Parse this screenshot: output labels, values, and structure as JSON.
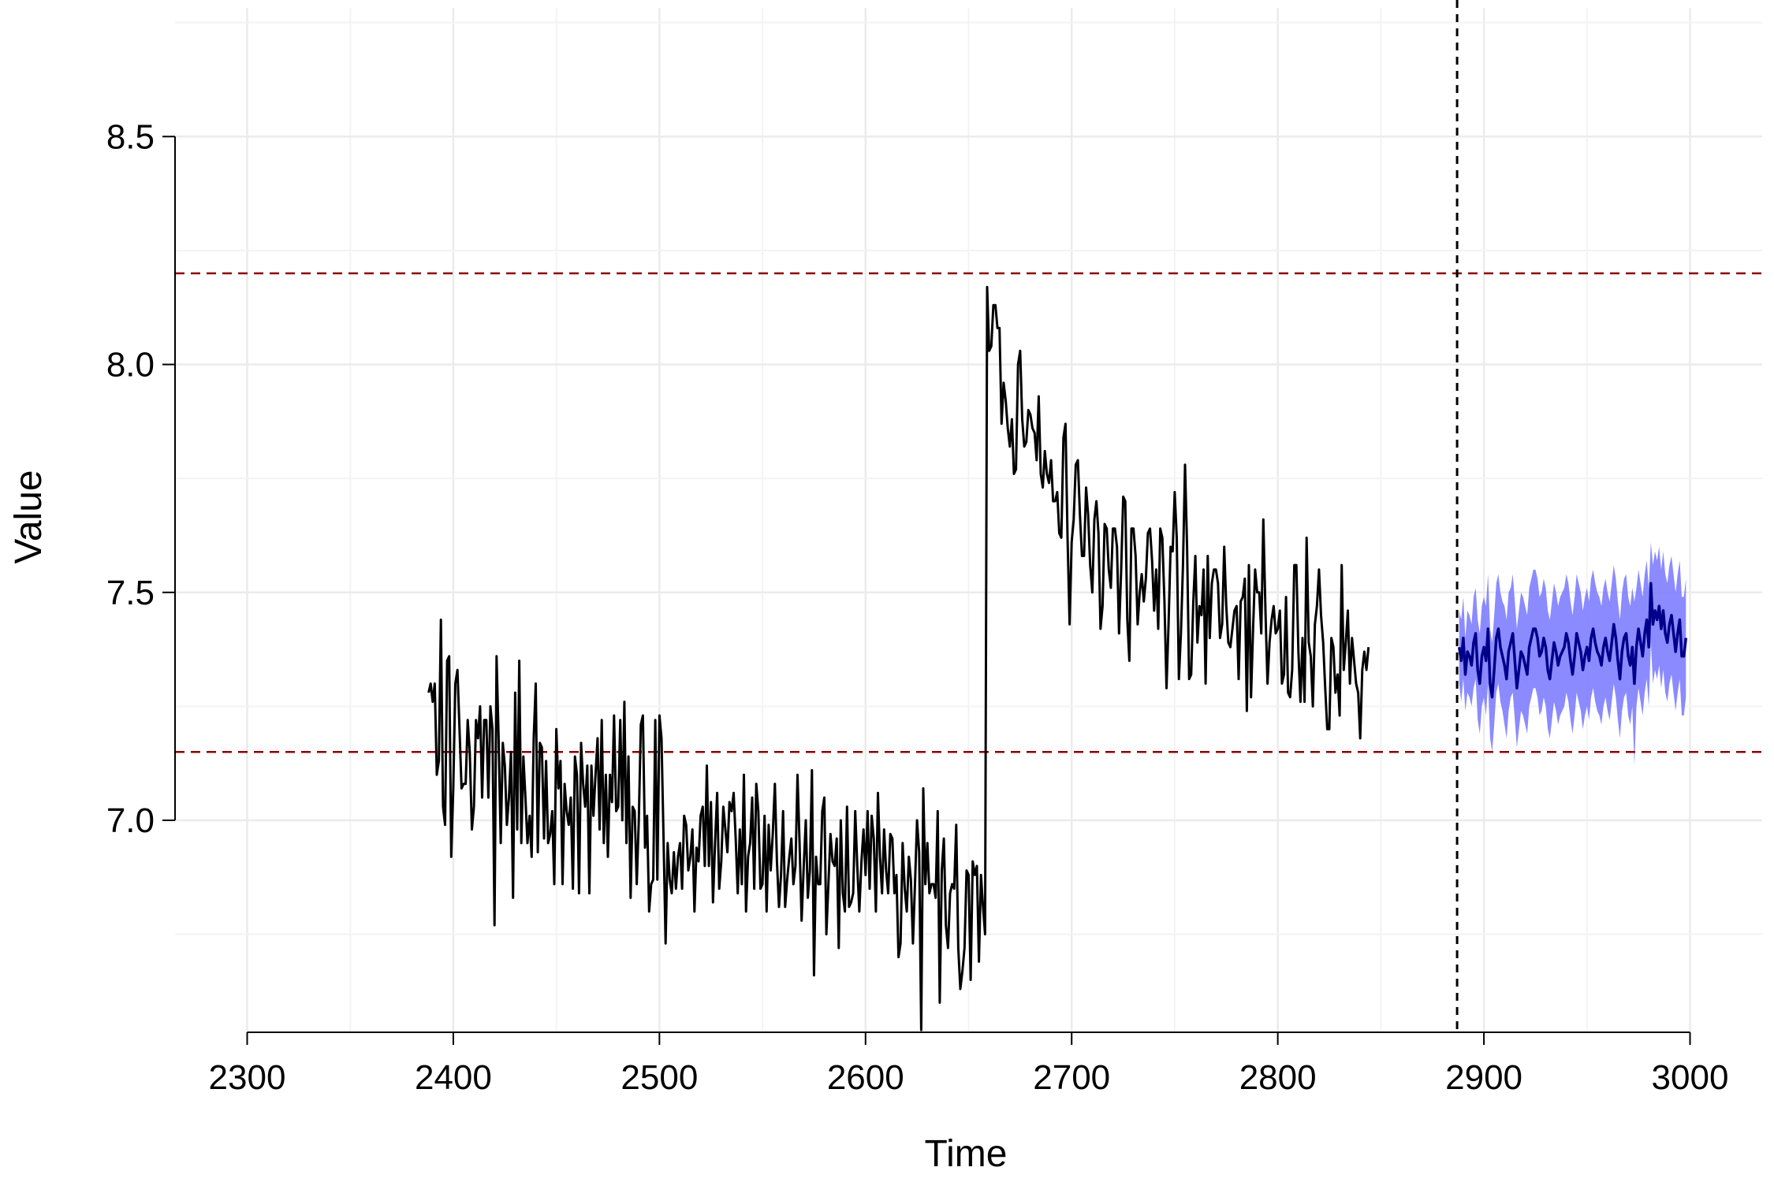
{
  "chart_data": {
    "type": "line",
    "xlabel": "Time",
    "ylabel": "Value",
    "xlim": [
      2265,
      3035
    ],
    "ylim": [
      6.535,
      8.765
    ],
    "x_ticks": [
      2300,
      2400,
      2500,
      2600,
      2700,
      2800,
      2900,
      3000
    ],
    "x_tick_labels": [
      "2300",
      "2400",
      "2500",
      "2600",
      "2700",
      "2800",
      "2900",
      "3000"
    ],
    "y_ticks": [
      7.0,
      7.5,
      8.0,
      8.5
    ],
    "y_tick_labels": [
      "7.0",
      "7.5",
      "8.0",
      "8.5"
    ],
    "grid": true,
    "reference_lines": {
      "horizontal": [
        7.15,
        8.2
      ],
      "horizontal_color": "#8B0000",
      "vertical": [
        2887
      ],
      "vertical_color": "#000000"
    },
    "series": [
      {
        "color": "#000000",
        "x_start": 2388,
        "values": [
          7.28,
          7.3,
          7.26,
          7.3,
          7.1,
          7.13,
          7.44,
          7.03,
          6.99,
          7.35,
          7.36,
          6.92,
          7.07,
          7.3,
          7.33,
          7.2,
          7.07,
          7.08,
          7.08,
          7.22,
          7.15,
          6.98,
          7.03,
          7.22,
          7.18,
          7.25,
          7.05,
          7.22,
          7.22,
          7.05,
          7.25,
          7.2,
          6.77,
          7.36,
          7.18,
          6.95,
          7.17,
          7.12,
          6.99,
          7.05,
          7.15,
          6.83,
          7.28,
          6.98,
          7.35,
          6.95,
          7.14,
          7.05,
          6.95,
          7.01,
          6.92,
          7.18,
          7.3,
          6.93,
          7.17,
          7.16,
          6.96,
          7.13,
          6.95,
          6.97,
          7.02,
          6.86,
          7.2,
          7.07,
          7.13,
          6.86,
          7.08,
          7.02,
          6.99,
          7.05,
          6.85,
          7.14,
          7.1,
          6.84,
          7.17,
          7.08,
          7.03,
          7.12,
          6.84,
          7.12,
          7.01,
          7.1,
          7.18,
          6.98,
          7.22,
          6.95,
          7.1,
          6.92,
          7.1,
          7.04,
          7.23,
          7.02,
          7.03,
          7.22,
          7.0,
          7.26,
          6.95,
          7.14,
          6.83,
          7.03,
          7.02,
          6.86,
          7.0,
          7.21,
          7.23,
          6.94,
          7.01,
          6.8,
          6.86,
          6.87,
          7.22,
          6.87,
          7.23,
          7.18,
          6.96,
          6.73,
          6.95,
          6.87,
          6.84,
          6.93,
          6.85,
          6.92,
          6.95,
          6.85,
          7.01,
          6.99,
          6.89,
          6.92,
          6.98,
          6.8,
          6.94,
          6.91,
          7.01,
          7.03,
          6.9,
          7.12,
          6.9,
          7.04,
          6.82,
          6.95,
          7.06,
          6.85,
          6.91,
          7.03,
          6.98,
          6.93,
          7.04,
          7.02,
          7.06,
          6.96,
          6.84,
          6.98,
          6.86,
          7.1,
          6.8,
          6.92,
          6.95,
          7.05,
          6.85,
          7.08,
          7.02,
          6.85,
          6.86,
          7.01,
          6.8,
          6.99,
          6.89,
          6.97,
          7.08,
          6.91,
          6.81,
          6.88,
          7.02,
          6.81,
          6.87,
          6.92,
          6.96,
          6.86,
          6.9,
          7.1,
          6.95,
          6.78,
          6.9,
          7.0,
          6.83,
          6.89,
          7.11,
          6.66,
          6.92,
          6.86,
          6.86,
          7.02,
          7.05,
          6.75,
          6.86,
          6.97,
          6.91,
          6.9,
          6.96,
          6.72,
          7.0,
          6.84,
          6.8,
          7.03,
          6.81,
          6.82,
          6.84,
          7.02,
          6.9,
          6.8,
          6.91,
          6.98,
          6.88,
          7.02,
          6.85,
          7.01,
          6.96,
          6.8,
          7.06,
          6.92,
          6.84,
          6.98,
          6.89,
          6.84,
          6.97,
          6.96,
          6.84,
          6.88,
          6.7,
          6.73,
          6.95,
          6.85,
          6.8,
          6.92,
          6.87,
          6.73,
          6.86,
          7.0,
          6.93,
          6.54,
          7.07,
          6.86,
          6.95,
          6.84,
          6.86,
          6.86,
          6.83,
          7.02,
          6.6,
          6.89,
          6.96,
          6.77,
          6.72,
          6.84,
          6.86,
          6.85,
          6.99,
          6.72,
          6.63,
          6.67,
          6.72,
          6.89,
          6.88,
          6.65,
          6.91,
          6.88,
          6.9,
          6.69,
          6.88,
          6.81,
          6.75,
          8.17,
          8.03,
          8.04,
          8.13,
          8.13,
          8.08,
          8.08,
          7.87,
          7.96,
          7.92,
          7.86,
          7.82,
          7.88,
          7.76,
          7.77,
          8.0,
          8.03,
          7.88,
          7.82,
          7.83,
          7.9,
          7.89,
          7.86,
          7.85,
          7.79,
          7.93,
          7.76,
          7.73,
          7.81,
          7.76,
          7.74,
          7.79,
          7.7,
          7.7,
          7.72,
          7.63,
          7.62,
          7.84,
          7.87,
          7.62,
          7.43,
          7.61,
          7.66,
          7.78,
          7.79,
          7.67,
          7.58,
          7.58,
          7.73,
          7.67,
          7.56,
          7.5,
          7.66,
          7.7,
          7.63,
          7.42,
          7.47,
          7.65,
          7.64,
          7.55,
          7.51,
          7.64,
          7.64,
          7.6,
          7.41,
          7.55,
          7.71,
          7.7,
          7.44,
          7.35,
          7.64,
          7.64,
          7.58,
          7.43,
          7.5,
          7.54,
          7.48,
          7.53,
          7.63,
          7.64,
          7.57,
          7.46,
          7.55,
          7.42,
          7.64,
          7.62,
          7.48,
          7.29,
          7.43,
          7.6,
          7.59,
          7.72,
          7.62,
          7.31,
          7.41,
          7.56,
          7.78,
          7.6,
          7.31,
          7.32,
          7.48,
          7.58,
          7.39,
          7.47,
          7.45,
          7.55,
          7.3,
          7.58,
          7.4,
          7.52,
          7.55,
          7.55,
          7.52,
          7.4,
          7.43,
          7.6,
          7.47,
          7.39,
          7.38,
          7.42,
          7.46,
          7.47,
          7.31,
          7.48,
          7.49,
          7.53,
          7.24,
          7.56,
          7.27,
          7.42,
          7.55,
          7.5,
          7.5,
          7.41,
          7.66,
          7.46,
          7.3,
          7.39,
          7.44,
          7.47,
          7.41,
          7.42,
          7.46,
          7.3,
          7.32,
          7.49,
          7.28,
          7.27,
          7.33,
          7.56,
          7.56,
          7.37,
          7.26,
          7.4,
          7.26,
          7.62,
          7.39,
          7.36,
          7.25,
          7.43,
          7.47,
          7.55,
          7.45,
          7.39,
          7.29,
          7.2,
          7.2,
          7.4,
          7.38,
          7.28,
          7.32,
          7.23,
          7.56,
          7.33,
          7.39,
          7.46,
          7.3,
          7.4,
          7.35,
          7.3,
          7.28,
          7.18,
          7.33,
          7.37,
          7.33,
          7.38
        ]
      },
      {
        "color": "#00008B",
        "band_color": "#7777FF",
        "x_start": 2888,
        "values": [
          7.38,
          7.35,
          7.4,
          7.32,
          7.37,
          7.36,
          7.34,
          7.39,
          7.41,
          7.33,
          7.3,
          7.36,
          7.38,
          7.35,
          7.42,
          7.3,
          7.27,
          7.33,
          7.4,
          7.42,
          7.38,
          7.36,
          7.34,
          7.31,
          7.37,
          7.39,
          7.41,
          7.35,
          7.29,
          7.33,
          7.37,
          7.36,
          7.34,
          7.32,
          7.38,
          7.4,
          7.42,
          7.42,
          7.4,
          7.36,
          7.37,
          7.4,
          7.38,
          7.33,
          7.31,
          7.35,
          7.39,
          7.37,
          7.34,
          7.36,
          7.37,
          7.38,
          7.41,
          7.39,
          7.35,
          7.32,
          7.36,
          7.41,
          7.39,
          7.37,
          7.33,
          7.36,
          7.38,
          7.35,
          7.4,
          7.42,
          7.39,
          7.37,
          7.36,
          7.34,
          7.38,
          7.4,
          7.37,
          7.35,
          7.39,
          7.43,
          7.4,
          7.35,
          7.31,
          7.37,
          7.4,
          7.41,
          7.36,
          7.34,
          7.38,
          7.3,
          7.38,
          7.42,
          7.39,
          7.36,
          7.41,
          7.44,
          7.38,
          7.52,
          7.43,
          7.46,
          7.44,
          7.47,
          7.42,
          7.46,
          7.41,
          7.39,
          7.43,
          7.45,
          7.41,
          7.37,
          7.41,
          7.44,
          7.36,
          7.36,
          7.4
        ],
        "lower": [
          7.3,
          7.26,
          7.31,
          7.24,
          7.28,
          7.27,
          7.25,
          7.29,
          7.31,
          7.22,
          7.19,
          7.25,
          7.27,
          7.23,
          7.3,
          7.18,
          7.15,
          7.21,
          7.28,
          7.3,
          7.26,
          7.24,
          7.21,
          7.18,
          7.24,
          7.27,
          7.28,
          7.22,
          7.16,
          7.2,
          7.24,
          7.23,
          7.21,
          7.19,
          7.25,
          7.27,
          7.29,
          7.29,
          7.27,
          7.23,
          7.24,
          7.27,
          7.25,
          7.2,
          7.18,
          7.22,
          7.26,
          7.24,
          7.21,
          7.23,
          7.24,
          7.25,
          7.28,
          7.26,
          7.22,
          7.19,
          7.23,
          7.28,
          7.26,
          7.24,
          7.2,
          7.23,
          7.25,
          7.22,
          7.27,
          7.29,
          7.26,
          7.24,
          7.23,
          7.21,
          7.25,
          7.27,
          7.24,
          7.22,
          7.26,
          7.3,
          7.27,
          7.22,
          7.18,
          7.24,
          7.27,
          7.28,
          7.23,
          7.21,
          7.25,
          7.12,
          7.25,
          7.29,
          7.26,
          7.23,
          7.28,
          7.31,
          7.25,
          7.39,
          7.3,
          7.33,
          7.31,
          7.34,
          7.29,
          7.33,
          7.28,
          7.26,
          7.3,
          7.32,
          7.28,
          7.24,
          7.28,
          7.31,
          7.23,
          7.23,
          7.27
        ],
        "upper": [
          7.46,
          7.44,
          7.49,
          7.4,
          7.46,
          7.45,
          7.43,
          7.49,
          7.51,
          7.44,
          7.41,
          7.47,
          7.49,
          7.47,
          7.54,
          7.42,
          7.39,
          7.45,
          7.52,
          7.54,
          7.5,
          7.48,
          7.47,
          7.44,
          7.5,
          7.51,
          7.54,
          7.48,
          7.42,
          7.46,
          7.5,
          7.49,
          7.47,
          7.45,
          7.51,
          7.53,
          7.55,
          7.55,
          7.53,
          7.49,
          7.5,
          7.53,
          7.51,
          7.46,
          7.44,
          7.48,
          7.52,
          7.5,
          7.47,
          7.49,
          7.5,
          7.51,
          7.54,
          7.52,
          7.48,
          7.45,
          7.49,
          7.54,
          7.52,
          7.5,
          7.46,
          7.49,
          7.51,
          7.48,
          7.53,
          7.55,
          7.52,
          7.5,
          7.49,
          7.47,
          7.51,
          7.53,
          7.5,
          7.48,
          7.52,
          7.56,
          7.53,
          7.48,
          7.44,
          7.5,
          7.53,
          7.54,
          7.49,
          7.47,
          7.51,
          7.48,
          7.51,
          7.55,
          7.52,
          7.49,
          7.54,
          7.57,
          7.51,
          7.61,
          7.56,
          7.59,
          7.57,
          7.6,
          7.55,
          7.59,
          7.54,
          7.52,
          7.56,
          7.58,
          7.54,
          7.5,
          7.54,
          7.57,
          7.49,
          7.49,
          7.53
        ]
      }
    ]
  }
}
